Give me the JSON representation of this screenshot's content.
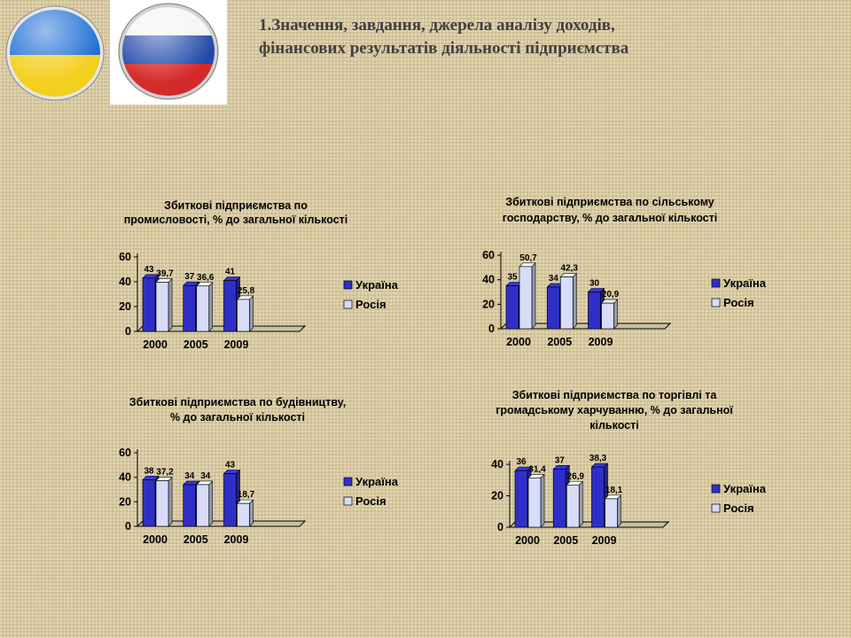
{
  "title": {
    "line1": "1.Значення, завдання, джерела аналізу доходів,",
    "line2": "фінансових результатів  діяльності підприємства"
  },
  "colors": {
    "ukraine": "#2f2fc8",
    "russia": "#d7ddf8",
    "flag_blue": "#1f6fd6",
    "flag_yellow": "#f3cf1e",
    "ru_white": "#f4f4f4",
    "ru_blue": "#2148a8",
    "ru_red": "#d42a2a"
  },
  "chart_data": [
    {
      "type": "bar",
      "title_lines": [
        "Збиткові підприємства по",
        "промисловості, % до загальної кількості"
      ],
      "categories": [
        "2000",
        "2005",
        "2009"
      ],
      "series": [
        {
          "name": "Україна",
          "values": [
            43,
            37,
            41
          ],
          "labels": [
            "43",
            "37",
            "41"
          ]
        },
        {
          "name": "Росія",
          "values": [
            39.7,
            36.6,
            25.8
          ],
          "labels": [
            "39,7",
            "36,6",
            "25,8"
          ]
        }
      ],
      "yticks": [
        "0",
        "20",
        "40",
        "60"
      ],
      "ylim": [
        0,
        60
      ]
    },
    {
      "type": "bar",
      "title_lines": [
        "Збиткові підприємства по сільському",
        "господарству, % до загальної кількості"
      ],
      "categories": [
        "2000",
        "2005",
        "2009"
      ],
      "series": [
        {
          "name": "Україна",
          "values": [
            35,
            34,
            30
          ],
          "labels": [
            "35",
            "34",
            "30"
          ]
        },
        {
          "name": "Росія",
          "values": [
            50.7,
            42.3,
            20.9
          ],
          "labels": [
            "50,7",
            "42,3",
            "20,9"
          ]
        }
      ],
      "yticks": [
        "0",
        "20",
        "40",
        "60"
      ],
      "ylim": [
        0,
        60
      ]
    },
    {
      "type": "bar",
      "title_lines": [
        "Збиткові підприємства по будівництву,",
        "% до загальної кількості"
      ],
      "categories": [
        "2000",
        "2005",
        "2009"
      ],
      "series": [
        {
          "name": "Україна",
          "values": [
            38,
            34,
            43
          ],
          "labels": [
            "38",
            "34",
            "43"
          ]
        },
        {
          "name": "Росія",
          "values": [
            37.2,
            34,
            18.7
          ],
          "labels": [
            "37,2",
            "34",
            "18,7"
          ]
        }
      ],
      "yticks": [
        "0",
        "20",
        "40",
        "60"
      ],
      "ylim": [
        0,
        60
      ]
    },
    {
      "type": "bar",
      "title_lines": [
        "Збиткові підприємства по торгівлі та",
        "громадському харчуванню, % до загальної",
        "кількості"
      ],
      "categories": [
        "2000",
        "2005",
        "2009"
      ],
      "series": [
        {
          "name": "Україна",
          "values": [
            36,
            37,
            38.3
          ],
          "labels": [
            "36",
            "37",
            "38,3"
          ]
        },
        {
          "name": "Росія",
          "values": [
            31.4,
            26.9,
            18.1
          ],
          "labels": [
            "31,4",
            "26,9",
            "18,1"
          ]
        }
      ],
      "yticks": [
        "0",
        "20",
        "40"
      ],
      "ylim": [
        0,
        40
      ]
    }
  ]
}
